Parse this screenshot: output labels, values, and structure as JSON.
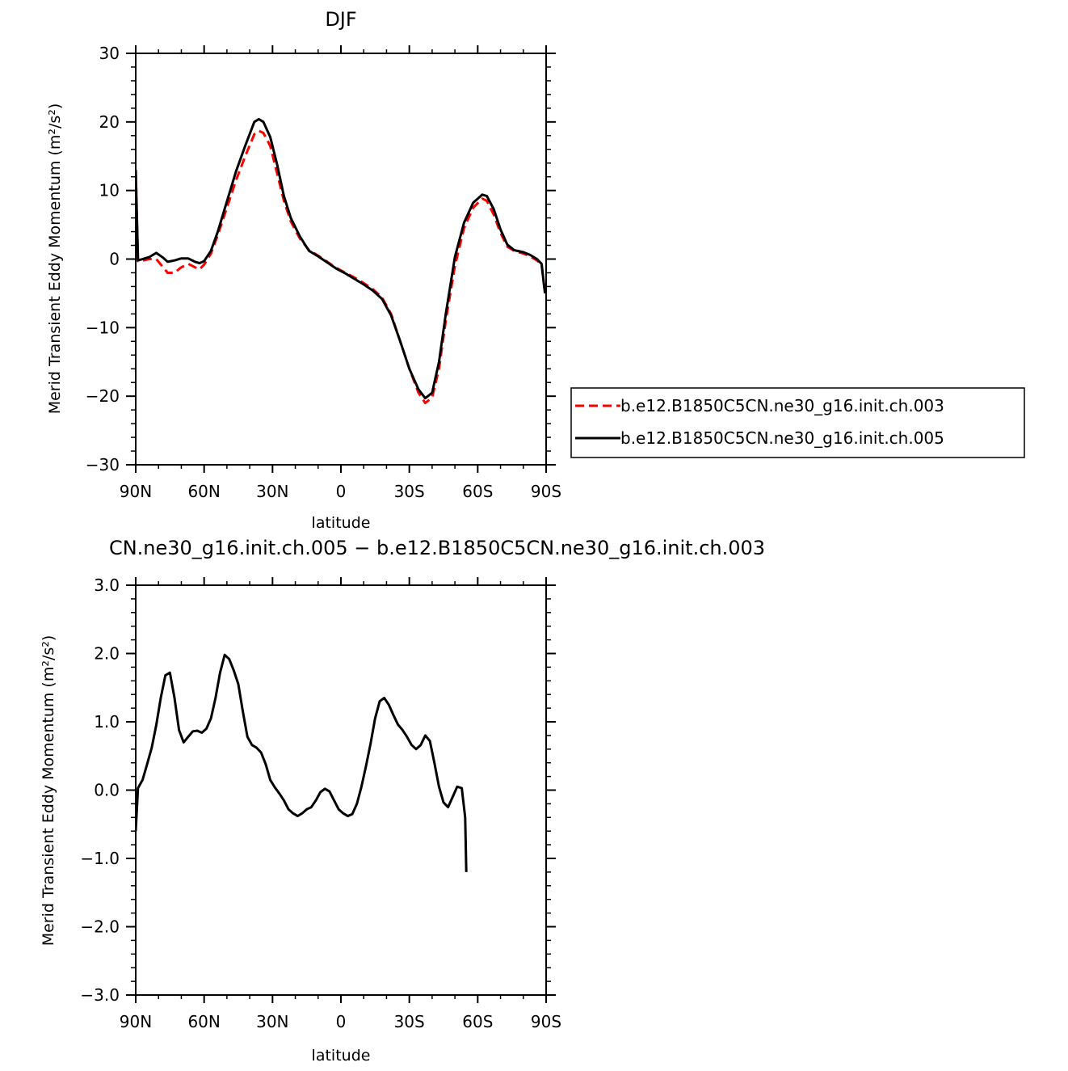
{
  "chart_data": [
    {
      "type": "line",
      "title": "DJF",
      "xlabel": "latitude",
      "ylabel": "Merid Transient Eddy Momentum (m²/s²)",
      "ylim": [
        -30,
        30
      ],
      "xlim": [
        90,
        -90
      ],
      "x_ticks": [
        90,
        60,
        30,
        0,
        -30,
        -60,
        -90
      ],
      "x_tick_labels": [
        "90N",
        "60N",
        "30N",
        "0",
        "30S",
        "60S",
        "90S"
      ],
      "y_ticks": [
        -30,
        -20,
        -10,
        0,
        10,
        20,
        30
      ],
      "y_tick_labels": [
        "−30",
        "−20",
        "−10",
        "0",
        "10",
        "20",
        "30"
      ],
      "legend_position": "right",
      "series": [
        {
          "name": "b.e12.B1850C5CN.ne30_g16.init.ch.003",
          "color": "#ff0000",
          "dash": "dashed",
          "points": [
            [
              90,
              13
            ],
            [
              89,
              -0.3
            ],
            [
              87,
              -0.2
            ],
            [
              84,
              0.0
            ],
            [
              81,
              0.0
            ],
            [
              78,
              -1.2
            ],
            [
              76,
              -2.0
            ],
            [
              73,
              -2.0
            ],
            [
              70,
              -1.2
            ],
            [
              67,
              -0.7
            ],
            [
              64,
              -1.2
            ],
            [
              62,
              -1.5
            ],
            [
              60,
              -0.8
            ],
            [
              57,
              0.8
            ],
            [
              54,
              3.5
            ],
            [
              50,
              7.5
            ],
            [
              46,
              11.5
            ],
            [
              42,
              15.0
            ],
            [
              38,
              18.2
            ],
            [
              36,
              18.7
            ],
            [
              34,
              18.4
            ],
            [
              31,
              16.5
            ],
            [
              28,
              12.5
            ],
            [
              25,
              8.5
            ],
            [
              22,
              5.5
            ],
            [
              18,
              3.0
            ],
            [
              14,
              1.3
            ],
            [
              10,
              0.5
            ],
            [
              6,
              -0.4
            ],
            [
              2,
              -1.3
            ],
            [
              -2,
              -2.0
            ],
            [
              -6,
              -2.7
            ],
            [
              -10,
              -3.5
            ],
            [
              -14,
              -4.4
            ],
            [
              -18,
              -5.6
            ],
            [
              -22,
              -8.0
            ],
            [
              -26,
              -12.0
            ],
            [
              -30,
              -16.0
            ],
            [
              -34,
              -19.5
            ],
            [
              -37,
              -21.0
            ],
            [
              -40,
              -20.2
            ],
            [
              -43,
              -16.0
            ],
            [
              -46,
              -9.0
            ],
            [
              -50,
              -1.0
            ],
            [
              -54,
              4.5
            ],
            [
              -58,
              7.5
            ],
            [
              -62,
              8.8
            ],
            [
              -64,
              8.5
            ],
            [
              -67,
              6.5
            ],
            [
              -70,
              3.8
            ],
            [
              -73,
              1.8
            ],
            [
              -76,
              1.2
            ],
            [
              -80,
              0.8
            ],
            [
              -83,
              0.4
            ],
            [
              -86,
              -0.2
            ],
            [
              -88,
              -0.8
            ],
            [
              -89.5,
              -5
            ]
          ]
        },
        {
          "name": "b.e12.B1850C5CN.ne30_g16.init.ch.005",
          "color": "#000000",
          "dash": "solid",
          "points": [
            [
              90,
              13
            ],
            [
              89,
              -0.2
            ],
            [
              87,
              0.0
            ],
            [
              84,
              0.3
            ],
            [
              81,
              0.9
            ],
            [
              78,
              0.2
            ],
            [
              76,
              -0.4
            ],
            [
              73,
              -0.2
            ],
            [
              70,
              0.1
            ],
            [
              67,
              0.1
            ],
            [
              64,
              -0.4
            ],
            [
              62,
              -0.6
            ],
            [
              60,
              -0.3
            ],
            [
              57,
              1.2
            ],
            [
              54,
              4.0
            ],
            [
              50,
              8.4
            ],
            [
              46,
              12.8
            ],
            [
              42,
              16.5
            ],
            [
              38,
              20.0
            ],
            [
              36,
              20.4
            ],
            [
              34,
              20.0
            ],
            [
              31,
              17.8
            ],
            [
              28,
              13.8
            ],
            [
              25,
              9.2
            ],
            [
              22,
              6.0
            ],
            [
              18,
              3.3
            ],
            [
              14,
              1.2
            ],
            [
              10,
              0.4
            ],
            [
              6,
              -0.5
            ],
            [
              2,
              -1.4
            ],
            [
              -2,
              -2.1
            ],
            [
              -6,
              -2.9
            ],
            [
              -10,
              -3.7
            ],
            [
              -14,
              -4.6
            ],
            [
              -18,
              -5.8
            ],
            [
              -22,
              -8.2
            ],
            [
              -26,
              -12.0
            ],
            [
              -30,
              -16.0
            ],
            [
              -34,
              -19.0
            ],
            [
              -37,
              -20.3
            ],
            [
              -40,
              -19.5
            ],
            [
              -43,
              -15.0
            ],
            [
              -46,
              -8.0
            ],
            [
              -50,
              0.3
            ],
            [
              -54,
              5.3
            ],
            [
              -58,
              8.2
            ],
            [
              -62,
              9.4
            ],
            [
              -64,
              9.2
            ],
            [
              -67,
              7.3
            ],
            [
              -70,
              4.3
            ],
            [
              -73,
              2.1
            ],
            [
              -76,
              1.3
            ],
            [
              -80,
              1.0
            ],
            [
              -83,
              0.6
            ],
            [
              -86,
              0.0
            ],
            [
              -88,
              -0.7
            ],
            [
              -89.5,
              -5
            ]
          ]
        }
      ]
    },
    {
      "type": "line",
      "title": "CN.ne30_g16.init.ch.005 − b.e12.B1850C5CN.ne30_g16.init.ch.003",
      "xlabel": "latitude",
      "ylabel": "Merid Transient Eddy Momentum (m²/s²)",
      "ylim": [
        -3.0,
        3.0
      ],
      "xlim": [
        90,
        -90
      ],
      "x_ticks": [
        90,
        60,
        30,
        0,
        -30,
        -60,
        -90
      ],
      "x_tick_labels": [
        "90N",
        "60N",
        "30N",
        "0",
        "30S",
        "60S",
        "90S"
      ],
      "y_ticks": [
        -3.0,
        -2.0,
        -1.0,
        0.0,
        1.0,
        2.0,
        3.0
      ],
      "y_tick_labels": [
        "−3.0",
        "−2.0",
        "−1.0",
        "0.0",
        "1.0",
        "2.0",
        "3.0"
      ],
      "series": [
        {
          "color": "#000000",
          "dash": "solid",
          "points": [
            [
              90,
              -0.6
            ],
            [
              89,
              0.03
            ],
            [
              87,
              0.15
            ],
            [
              85,
              0.38
            ],
            [
              83,
              0.62
            ],
            [
              81,
              0.95
            ],
            [
              79,
              1.35
            ],
            [
              77,
              1.68
            ],
            [
              75,
              1.72
            ],
            [
              73,
              1.35
            ],
            [
              71,
              0.88
            ],
            [
              69,
              0.7
            ],
            [
              67,
              0.78
            ],
            [
              65,
              0.86
            ],
            [
              63,
              0.87
            ],
            [
              61,
              0.84
            ],
            [
              59,
              0.9
            ],
            [
              57,
              1.05
            ],
            [
              55,
              1.35
            ],
            [
              53,
              1.72
            ],
            [
              51,
              1.98
            ],
            [
              49,
              1.92
            ],
            [
              47,
              1.75
            ],
            [
              45,
              1.55
            ],
            [
              43,
              1.15
            ],
            [
              41,
              0.78
            ],
            [
              39,
              0.66
            ],
            [
              37,
              0.62
            ],
            [
              35,
              0.55
            ],
            [
              33,
              0.38
            ],
            [
              31,
              0.15
            ],
            [
              29,
              0.04
            ],
            [
              27,
              -0.05
            ],
            [
              25,
              -0.15
            ],
            [
              23,
              -0.28
            ],
            [
              21,
              -0.34
            ],
            [
              19,
              -0.38
            ],
            [
              17,
              -0.34
            ],
            [
              15,
              -0.28
            ],
            [
              13,
              -0.25
            ],
            [
              11,
              -0.15
            ],
            [
              9,
              -0.03
            ],
            [
              7,
              0.02
            ],
            [
              5,
              -0.02
            ],
            [
              3,
              -0.15
            ],
            [
              1,
              -0.28
            ],
            [
              -1,
              -0.34
            ],
            [
              -3,
              -0.38
            ],
            [
              -5,
              -0.35
            ],
            [
              -7,
              -0.2
            ],
            [
              -9,
              0.05
            ],
            [
              -11,
              0.35
            ],
            [
              -13,
              0.68
            ],
            [
              -15,
              1.05
            ],
            [
              -17,
              1.3
            ],
            [
              -19,
              1.35
            ],
            [
              -21,
              1.25
            ],
            [
              -23,
              1.1
            ],
            [
              -25,
              0.96
            ],
            [
              -27,
              0.88
            ],
            [
              -29,
              0.78
            ],
            [
              -31,
              0.66
            ],
            [
              -33,
              0.6
            ],
            [
              -35,
              0.66
            ],
            [
              -37,
              0.8
            ],
            [
              -39,
              0.72
            ],
            [
              -41,
              0.4
            ],
            [
              -43,
              0.05
            ],
            [
              -45,
              -0.18
            ],
            [
              -47,
              -0.25
            ],
            [
              -49,
              -0.1
            ],
            [
              -51,
              0.05
            ],
            [
              -53,
              0.03
            ],
            [
              -54.5,
              -0.4
            ],
            [
              -55,
              -1.2
            ]
          ]
        }
      ]
    }
  ]
}
